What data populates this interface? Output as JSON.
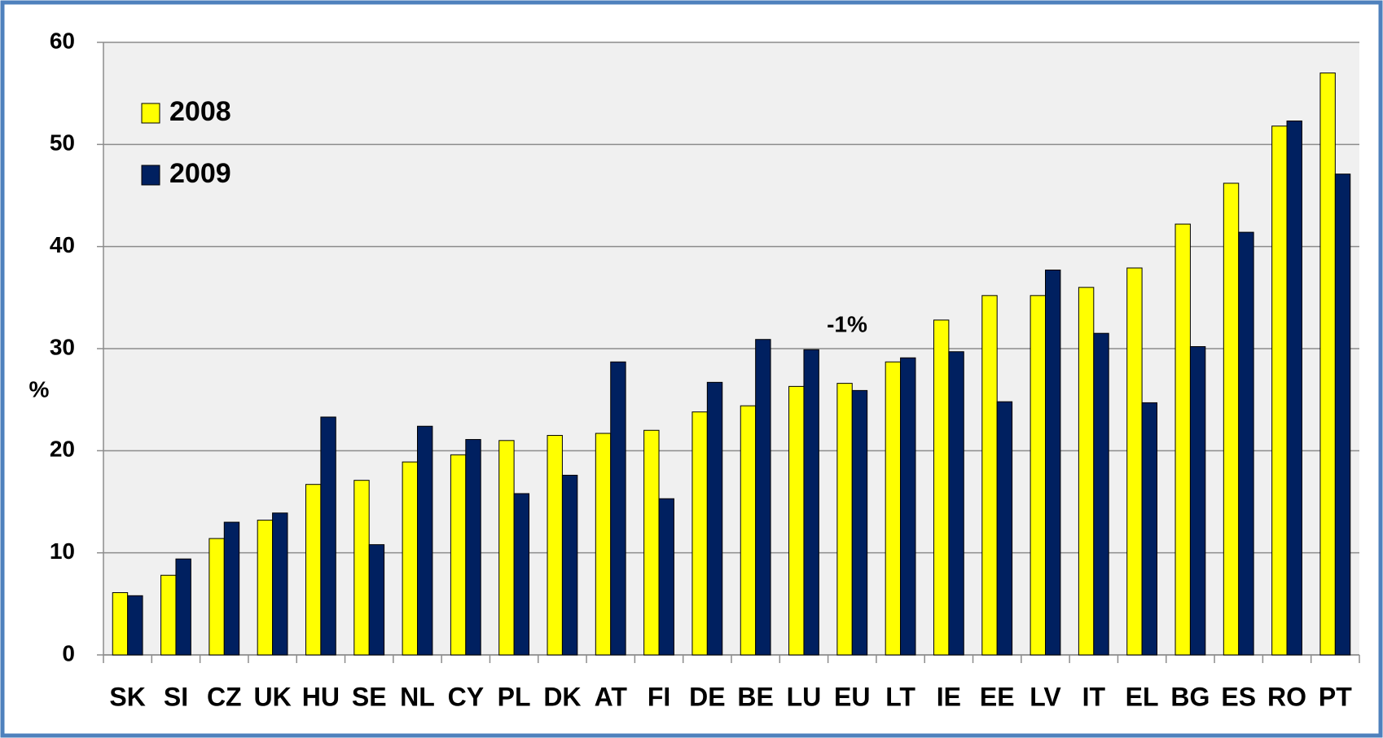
{
  "chart_data": {
    "type": "bar",
    "y_label": "%",
    "annotations": [
      "-1%"
    ],
    "categories": [
      "SK",
      "SI",
      "CZ",
      "UK",
      "HU",
      "SE",
      "NL",
      "CY",
      "PL",
      "DK",
      "AT",
      "FI",
      "DE",
      "BE",
      "LU",
      "EU",
      "LT",
      "IE",
      "EE",
      "LV",
      "IT",
      "EL",
      "BG",
      "ES",
      "RO",
      "PT"
    ],
    "series": [
      {
        "name": "2008",
        "color": "#ffff00",
        "values": [
          6.1,
          7.8,
          11.4,
          13.2,
          16.7,
          17.1,
          18.9,
          19.6,
          21.0,
          21.5,
          21.7,
          22.0,
          23.8,
          24.4,
          26.3,
          26.6,
          28.7,
          32.8,
          35.2,
          35.2,
          36.0,
          37.9,
          42.2,
          46.2,
          51.8,
          57.0
        ]
      },
      {
        "name": "2009",
        "color": "#002060",
        "values": [
          5.8,
          9.4,
          13.0,
          13.9,
          23.3,
          10.8,
          22.4,
          21.1,
          15.8,
          17.6,
          28.7,
          15.3,
          26.7,
          30.9,
          29.9,
          25.9,
          29.1,
          29.7,
          24.8,
          37.7,
          31.5,
          24.7,
          30.2,
          41.4,
          52.3,
          47.1
        ]
      }
    ],
    "ylim": [
      0,
      60
    ],
    "yticks": [
      0,
      10,
      20,
      30,
      40,
      50,
      60
    ],
    "grid": true,
    "legend": "top-left"
  }
}
